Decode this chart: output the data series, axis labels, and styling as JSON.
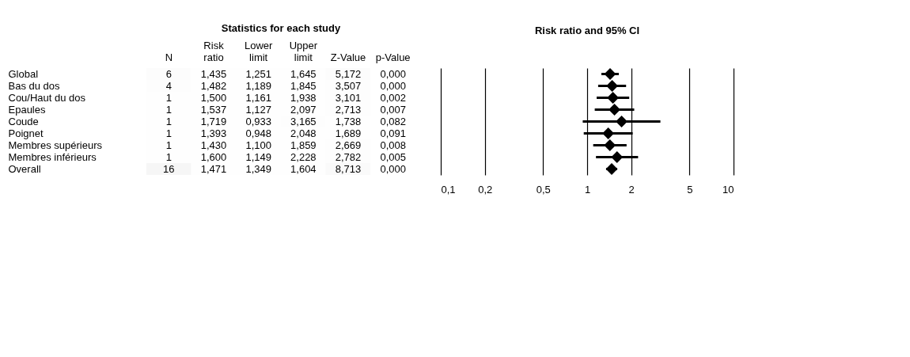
{
  "chart_data": [
    {
      "type": "heatmap",
      "title": "Statistics for each study",
      "categories": [
        "N",
        "Risk ratio",
        "Lower limit",
        "Upper limit",
        "Z-Value",
        "p-Value"
      ],
      "y_categories": [
        "Global",
        "Bas du dos",
        "Cou/Haut du dos",
        "Epaules",
        "Coude",
        "Poignet",
        "Membres supérieurs",
        "Membres inférieurs",
        "Overall"
      ],
      "cells": [
        [
          6,
          1.435,
          1.251,
          1.645,
          5.172,
          0.0
        ],
        [
          4,
          1.482,
          1.189,
          1.845,
          3.507,
          0.0
        ],
        [
          1,
          1.5,
          1.161,
          1.938,
          3.101,
          0.002
        ],
        [
          1,
          1.537,
          1.127,
          2.097,
          2.713,
          0.007
        ],
        [
          1,
          1.719,
          0.933,
          3.165,
          1.738,
          0.082
        ],
        [
          1,
          1.393,
          0.948,
          2.048,
          1.689,
          0.091
        ],
        [
          1,
          1.43,
          1.1,
          1.859,
          2.669,
          0.008
        ],
        [
          1,
          1.6,
          1.149,
          2.228,
          2.782,
          0.005
        ],
        [
          16,
          1.471,
          1.349,
          1.604,
          8.713,
          0.0
        ]
      ],
      "cell_labels": [
        [
          "6",
          "1,435",
          "1,251",
          "1,645",
          "5,172",
          "0,000"
        ],
        [
          "4",
          "1,482",
          "1,189",
          "1,845",
          "3,507",
          "0,000"
        ],
        [
          "1",
          "1,500",
          "1,161",
          "1,938",
          "3,101",
          "0,002"
        ],
        [
          "1",
          "1,537",
          "1,127",
          "2,097",
          "2,713",
          "0,007"
        ],
        [
          "1",
          "1,719",
          "0,933",
          "3,165",
          "1,738",
          "0,082"
        ],
        [
          "1",
          "1,393",
          "0,948",
          "2,048",
          "1,689",
          "0,091"
        ],
        [
          "1",
          "1,430",
          "1,100",
          "1,859",
          "2,669",
          "0,008"
        ],
        [
          "1",
          "1,600",
          "1,149",
          "2,228",
          "2,782",
          "0,005"
        ],
        [
          "16",
          "1,471",
          "1,349",
          "1,604",
          "8,713",
          "0,000"
        ]
      ]
    },
    {
      "type": "scatter",
      "title": "Risk ratio and 95% CI",
      "orientation": "horizontal",
      "color": "#000000",
      "marker": "diamond",
      "categories": [
        null,
        null,
        null,
        null,
        null,
        null,
        null,
        null,
        null
      ],
      "values": [
        1.435,
        1.482,
        1.5,
        1.537,
        1.719,
        1.393,
        1.43,
        1.6,
        1.471
      ],
      "errors": [
        [
          1.251,
          1.645
        ],
        [
          1.189,
          1.845
        ],
        [
          1.161,
          1.938
        ],
        [
          1.127,
          2.097
        ],
        [
          0.933,
          3.165
        ],
        [
          0.948,
          2.048
        ],
        [
          1.1,
          1.859
        ],
        [
          1.149,
          2.228
        ],
        [
          1.349,
          1.604
        ]
      ],
      "log": "x",
      "xlim": [
        0.1,
        10
      ],
      "xticks": [
        {
          "value": 0.1,
          "label": "0,1"
        },
        {
          "value": 0.2,
          "label": "0,2"
        },
        {
          "value": 0.5,
          "label": "0,5"
        },
        1,
        2,
        5,
        10
      ],
      "grid": "x",
      "tick_labels": "x"
    }
  ]
}
